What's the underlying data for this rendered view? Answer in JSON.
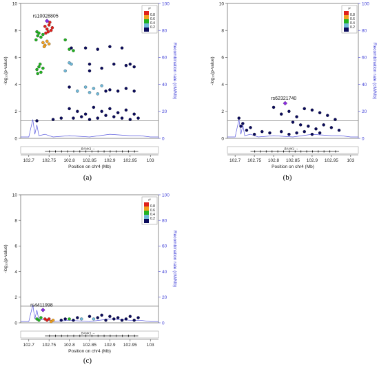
{
  "figure": {
    "panels": [
      {
        "caption": "(a)",
        "lead_snp": "rs10028805",
        "gene": "BANK1"
      },
      {
        "caption": "(b)",
        "lead_snp": "rs62321740",
        "gene": "BANK1"
      },
      {
        "caption": "(c)",
        "lead_snp": "rs4411998",
        "gene": "BANK1"
      }
    ],
    "left_axis_label": "-log₁₀(p-value)",
    "right_axis_label": "Recombination rate (cM/Mb)",
    "x_axis_label": "Position on chr4 (Mb)",
    "legend_title": "r²",
    "legend_ticks": [
      "0.8",
      "0.6",
      "0.4",
      "0.2"
    ],
    "x_ticks": [
      "102.7",
      "102.75",
      "102.8",
      "102.85",
      "102.9",
      "102.95",
      "103"
    ],
    "y_ticks": [
      "0",
      "2",
      "4",
      "6",
      "8",
      "10"
    ],
    "r_ticks": [
      "0",
      "20",
      "40",
      "60",
      "80",
      "100"
    ]
  },
  "chart_data": [
    {
      "type": "scatter",
      "panel": "(a)",
      "xlabel": "Position on chr4 (Mb)",
      "ylabel": "-log₁₀(p-value)",
      "y2label": "Recombination rate (cM/Mb)",
      "xlim": [
        102.68,
        103.02
      ],
      "ylim": [
        0,
        10
      ],
      "y2lim": [
        0,
        100
      ],
      "significance_line": 1.3,
      "lead_snp": {
        "name": "rs10028805",
        "x": 102.745,
        "y": 8.7
      },
      "ld_colors": {
        "0.8": "#e0201c",
        "0.6": "#f0a020",
        "0.4": "#22b222",
        "0.2": "#6fb8d8",
        "0.0": "#0b0b5c"
      },
      "points": [
        {
          "x": 102.72,
          "y": 7.9,
          "r2": "0.4"
        },
        {
          "x": 102.722,
          "y": 7.6,
          "r2": "0.4"
        },
        {
          "x": 102.725,
          "y": 7.8,
          "r2": "0.4"
        },
        {
          "x": 102.73,
          "y": 7.5,
          "r2": "0.4"
        },
        {
          "x": 102.718,
          "y": 7.3,
          "r2": "0.4"
        },
        {
          "x": 102.735,
          "y": 7.7,
          "r2": "0.4"
        },
        {
          "x": 102.74,
          "y": 8.3,
          "r2": "0.8"
        },
        {
          "x": 102.745,
          "y": 8.1,
          "r2": "0.8"
        },
        {
          "x": 102.75,
          "y": 8.4,
          "r2": "0.8"
        },
        {
          "x": 102.748,
          "y": 7.9,
          "r2": "0.8"
        },
        {
          "x": 102.755,
          "y": 8.0,
          "r2": "0.8"
        },
        {
          "x": 102.752,
          "y": 8.6,
          "r2": "0.8"
        },
        {
          "x": 102.742,
          "y": 7.8,
          "r2": "0.8"
        },
        {
          "x": 102.758,
          "y": 8.2,
          "r2": "0.8"
        },
        {
          "x": 102.735,
          "y": 7.1,
          "r2": "0.6"
        },
        {
          "x": 102.74,
          "y": 6.9,
          "r2": "0.6"
        },
        {
          "x": 102.745,
          "y": 7.2,
          "r2": "0.6"
        },
        {
          "x": 102.738,
          "y": 6.8,
          "r2": "0.6"
        },
        {
          "x": 102.75,
          "y": 7.0,
          "r2": "0.6"
        },
        {
          "x": 102.72,
          "y": 5.1,
          "r2": "0.4"
        },
        {
          "x": 102.725,
          "y": 5.3,
          "r2": "0.4"
        },
        {
          "x": 102.73,
          "y": 4.9,
          "r2": "0.4"
        },
        {
          "x": 102.722,
          "y": 4.8,
          "r2": "0.4"
        },
        {
          "x": 102.735,
          "y": 5.2,
          "r2": "0.4"
        },
        {
          "x": 102.728,
          "y": 5.5,
          "r2": "0.4"
        },
        {
          "x": 102.79,
          "y": 7.3,
          "r2": "0.4"
        },
        {
          "x": 102.8,
          "y": 6.6,
          "r2": "0.4"
        },
        {
          "x": 102.81,
          "y": 6.5,
          "r2": "0.4"
        },
        {
          "x": 102.805,
          "y": 6.7,
          "r2": "0.0"
        },
        {
          "x": 102.8,
          "y": 5.6,
          "r2": "0.2"
        },
        {
          "x": 102.79,
          "y": 5.0,
          "r2": "0.2"
        },
        {
          "x": 102.805,
          "y": 5.5,
          "r2": "0.2"
        },
        {
          "x": 102.84,
          "y": 6.7,
          "r2": "0.0"
        },
        {
          "x": 102.87,
          "y": 6.6,
          "r2": "0.0"
        },
        {
          "x": 102.9,
          "y": 6.8,
          "r2": "0.0"
        },
        {
          "x": 102.93,
          "y": 6.7,
          "r2": "0.0"
        },
        {
          "x": 102.85,
          "y": 5.5,
          "r2": "0.0"
        },
        {
          "x": 102.88,
          "y": 5.2,
          "r2": "0.0"
        },
        {
          "x": 102.91,
          "y": 5.5,
          "r2": "0.0"
        },
        {
          "x": 102.94,
          "y": 5.4,
          "r2": "0.0"
        },
        {
          "x": 102.96,
          "y": 5.3,
          "r2": "0.0"
        },
        {
          "x": 102.95,
          "y": 5.5,
          "r2": "0.0"
        },
        {
          "x": 102.85,
          "y": 5.0,
          "r2": "0.0"
        },
        {
          "x": 102.8,
          "y": 3.8,
          "r2": "0.0"
        },
        {
          "x": 102.82,
          "y": 3.5,
          "r2": "0.2"
        },
        {
          "x": 102.84,
          "y": 3.8,
          "r2": "0.2"
        },
        {
          "x": 102.86,
          "y": 3.7,
          "r2": "0.2"
        },
        {
          "x": 102.88,
          "y": 3.9,
          "r2": "0.2"
        },
        {
          "x": 102.9,
          "y": 3.6,
          "r2": "0.0"
        },
        {
          "x": 102.92,
          "y": 3.5,
          "r2": "0.0"
        },
        {
          "x": 102.94,
          "y": 3.7,
          "r2": "0.0"
        },
        {
          "x": 102.96,
          "y": 3.5,
          "r2": "0.0"
        },
        {
          "x": 102.85,
          "y": 3.4,
          "r2": "0.2"
        },
        {
          "x": 102.87,
          "y": 3.3,
          "r2": "0.2"
        },
        {
          "x": 102.89,
          "y": 3.5,
          "r2": "0.0"
        },
        {
          "x": 102.8,
          "y": 2.2,
          "r2": "0.0"
        },
        {
          "x": 102.82,
          "y": 2.0,
          "r2": "0.0"
        },
        {
          "x": 102.84,
          "y": 1.8,
          "r2": "0.0"
        },
        {
          "x": 102.86,
          "y": 2.3,
          "r2": "0.0"
        },
        {
          "x": 102.88,
          "y": 2.0,
          "r2": "0.0"
        },
        {
          "x": 102.9,
          "y": 2.2,
          "r2": "0.0"
        },
        {
          "x": 102.92,
          "y": 1.9,
          "r2": "0.0"
        },
        {
          "x": 102.94,
          "y": 2.1,
          "r2": "0.0"
        },
        {
          "x": 102.96,
          "y": 1.8,
          "r2": "0.0"
        },
        {
          "x": 102.81,
          "y": 1.5,
          "r2": "0.0"
        },
        {
          "x": 102.83,
          "y": 1.6,
          "r2": "0.0"
        },
        {
          "x": 102.85,
          "y": 1.4,
          "r2": "0.0"
        },
        {
          "x": 102.87,
          "y": 1.5,
          "r2": "0.0"
        },
        {
          "x": 102.89,
          "y": 1.7,
          "r2": "0.0"
        },
        {
          "x": 102.91,
          "y": 1.6,
          "r2": "0.0"
        },
        {
          "x": 102.93,
          "y": 1.5,
          "r2": "0.0"
        },
        {
          "x": 102.95,
          "y": 1.4,
          "r2": "0.0"
        },
        {
          "x": 102.97,
          "y": 1.5,
          "r2": "0.0"
        },
        {
          "x": 102.76,
          "y": 1.4,
          "r2": "0.0"
        },
        {
          "x": 102.78,
          "y": 1.5,
          "r2": "0.0"
        },
        {
          "x": 102.72,
          "y": 1.3,
          "r2": "0.0"
        }
      ],
      "recombination_rate": [
        [
          102.68,
          1
        ],
        [
          102.7,
          1
        ],
        [
          102.71,
          14
        ],
        [
          102.715,
          3
        ],
        [
          102.72,
          10
        ],
        [
          102.725,
          2
        ],
        [
          102.74,
          3
        ],
        [
          102.76,
          1
        ],
        [
          102.8,
          2
        ],
        [
          102.85,
          1
        ],
        [
          102.9,
          3
        ],
        [
          102.95,
          2
        ],
        [
          102.975,
          2
        ],
        [
          103.0,
          1
        ],
        [
          103.02,
          1
        ]
      ]
    },
    {
      "type": "scatter",
      "panel": "(b)",
      "xlabel": "Position on chr4 (Mb)",
      "ylabel": "-log₁₀(p-value)",
      "y2label": "Recombination rate (cM/Mb)",
      "xlim": [
        102.68,
        103.02
      ],
      "ylim": [
        0,
        10
      ],
      "y2lim": [
        0,
        100
      ],
      "significance_line": 1.3,
      "lead_snp": {
        "name": "rs62321740",
        "x": 102.83,
        "y": 2.6
      },
      "points": [
        {
          "x": 102.71,
          "y": 1.5,
          "r2": "0.0"
        },
        {
          "x": 102.715,
          "y": 0.9,
          "r2": "0.0"
        },
        {
          "x": 102.72,
          "y": 1.1,
          "r2": "0.0"
        },
        {
          "x": 102.73,
          "y": 0.6,
          "r2": "0.0"
        },
        {
          "x": 102.74,
          "y": 0.8,
          "r2": "0.0"
        },
        {
          "x": 102.75,
          "y": 0.3,
          "r2": "0.0"
        },
        {
          "x": 102.77,
          "y": 0.5,
          "r2": "0.0"
        },
        {
          "x": 102.79,
          "y": 0.4,
          "r2": "0.0"
        },
        {
          "x": 102.8,
          "y": 2.3,
          "r2": "0.0"
        },
        {
          "x": 102.82,
          "y": 1.8,
          "r2": "0.0"
        },
        {
          "x": 102.84,
          "y": 2.0,
          "r2": "0.0"
        },
        {
          "x": 102.86,
          "y": 1.6,
          "r2": "0.0"
        },
        {
          "x": 102.88,
          "y": 2.2,
          "r2": "0.0"
        },
        {
          "x": 102.9,
          "y": 2.1,
          "r2": "0.0"
        },
        {
          "x": 102.92,
          "y": 1.9,
          "r2": "0.0"
        },
        {
          "x": 102.94,
          "y": 1.7,
          "r2": "0.0"
        },
        {
          "x": 102.96,
          "y": 1.4,
          "r2": "0.0"
        },
        {
          "x": 102.85,
          "y": 1.2,
          "r2": "0.0"
        },
        {
          "x": 102.87,
          "y": 1.0,
          "r2": "0.0"
        },
        {
          "x": 102.89,
          "y": 0.9,
          "r2": "0.0"
        },
        {
          "x": 102.91,
          "y": 0.7,
          "r2": "0.0"
        },
        {
          "x": 102.93,
          "y": 1.0,
          "r2": "0.0"
        },
        {
          "x": 102.95,
          "y": 0.8,
          "r2": "0.0"
        },
        {
          "x": 102.97,
          "y": 0.6,
          "r2": "0.0"
        },
        {
          "x": 102.82,
          "y": 0.5,
          "r2": "0.0"
        },
        {
          "x": 102.84,
          "y": 0.3,
          "r2": "0.0"
        },
        {
          "x": 102.86,
          "y": 0.4,
          "r2": "0.0"
        },
        {
          "x": 102.88,
          "y": 0.5,
          "r2": "0.0"
        },
        {
          "x": 102.9,
          "y": 0.3,
          "r2": "0.0"
        },
        {
          "x": 102.92,
          "y": 0.4,
          "r2": "0.0"
        }
      ],
      "recombination_rate": [
        [
          102.68,
          1
        ],
        [
          102.7,
          1
        ],
        [
          102.71,
          14
        ],
        [
          102.715,
          3
        ],
        [
          102.72,
          10
        ],
        [
          102.725,
          2
        ],
        [
          102.74,
          3
        ],
        [
          102.76,
          1
        ],
        [
          102.8,
          2
        ],
        [
          102.85,
          1
        ],
        [
          102.9,
          3
        ],
        [
          102.95,
          2
        ],
        [
          102.975,
          2
        ],
        [
          103.0,
          1
        ],
        [
          103.02,
          1
        ]
      ]
    },
    {
      "type": "scatter",
      "panel": "(c)",
      "xlabel": "Position on chr4 (Mb)",
      "ylabel": "-log₁₀(p-value)",
      "y2label": "Recombination rate (cM/Mb)",
      "xlim": [
        102.68,
        103.02
      ],
      "ylim": [
        0,
        10
      ],
      "y2lim": [
        0,
        100
      ],
      "significance_line": 1.3,
      "lead_snp": {
        "name": "rs4411998",
        "x": 102.735,
        "y": 1.0
      },
      "points": [
        {
          "x": 102.72,
          "y": 0.3,
          "r2": "0.4"
        },
        {
          "x": 102.725,
          "y": 0.2,
          "r2": "0.4"
        },
        {
          "x": 102.73,
          "y": 0.4,
          "r2": "0.4"
        },
        {
          "x": 102.74,
          "y": 0.3,
          "r2": "0.8"
        },
        {
          "x": 102.745,
          "y": 0.2,
          "r2": "0.8"
        },
        {
          "x": 102.75,
          "y": 0.3,
          "r2": "0.8"
        },
        {
          "x": 102.755,
          "y": 0.1,
          "r2": "0.6"
        },
        {
          "x": 102.76,
          "y": 0.2,
          "r2": "0.6"
        },
        {
          "x": 102.8,
          "y": 0.3,
          "r2": "0.4"
        },
        {
          "x": 102.81,
          "y": 0.2,
          "r2": "0.0"
        },
        {
          "x": 102.82,
          "y": 0.4,
          "r2": "0.0"
        },
        {
          "x": 102.83,
          "y": 0.3,
          "r2": "0.2"
        },
        {
          "x": 102.85,
          "y": 0.5,
          "r2": "0.0"
        },
        {
          "x": 102.86,
          "y": 0.3,
          "r2": "0.2"
        },
        {
          "x": 102.87,
          "y": 0.4,
          "r2": "0.0"
        },
        {
          "x": 102.88,
          "y": 0.6,
          "r2": "0.0"
        },
        {
          "x": 102.9,
          "y": 0.5,
          "r2": "0.0"
        },
        {
          "x": 102.92,
          "y": 0.4,
          "r2": "0.0"
        },
        {
          "x": 102.94,
          "y": 0.3,
          "r2": "0.0"
        },
        {
          "x": 102.96,
          "y": 0.2,
          "r2": "0.0"
        },
        {
          "x": 102.97,
          "y": 0.4,
          "r2": "0.0"
        },
        {
          "x": 102.78,
          "y": 0.2,
          "r2": "0.0"
        },
        {
          "x": 102.79,
          "y": 0.3,
          "r2": "0.0"
        },
        {
          "x": 102.89,
          "y": 0.2,
          "r2": "0.0"
        },
        {
          "x": 102.91,
          "y": 0.3,
          "r2": "0.0"
        },
        {
          "x": 102.93,
          "y": 0.2,
          "r2": "0.0"
        },
        {
          "x": 102.95,
          "y": 0.5,
          "r2": "0.0"
        }
      ],
      "recombination_rate": [
        [
          102.68,
          1
        ],
        [
          102.7,
          1
        ],
        [
          102.71,
          14
        ],
        [
          102.715,
          3
        ],
        [
          102.72,
          10
        ],
        [
          102.725,
          2
        ],
        [
          102.74,
          3
        ],
        [
          102.76,
          1
        ],
        [
          102.8,
          2
        ],
        [
          102.85,
          1
        ],
        [
          102.9,
          3
        ],
        [
          102.95,
          2
        ],
        [
          102.975,
          2
        ],
        [
          103.0,
          1
        ],
        [
          103.02,
          1
        ]
      ]
    }
  ]
}
